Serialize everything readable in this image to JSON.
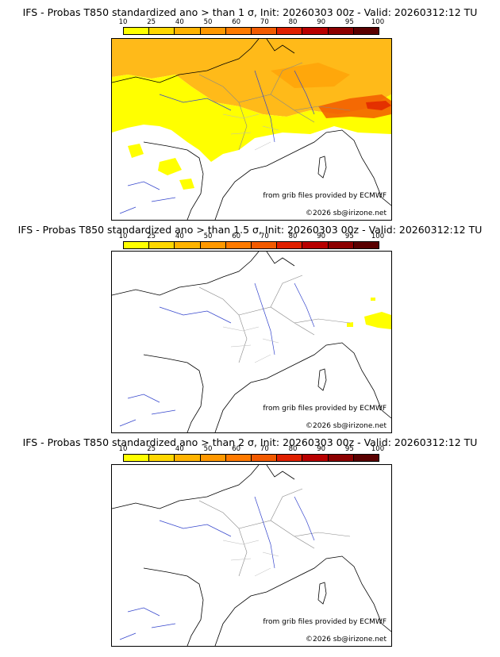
{
  "colorbar": {
    "ticks": [
      "10",
      "25",
      "40",
      "50",
      "60",
      "70",
      "80",
      "90",
      "95",
      "100"
    ],
    "colors": [
      "#ffff00",
      "#ffd700",
      "#ffb300",
      "#ff9800",
      "#ff7a00",
      "#f25a00",
      "#e02000",
      "#b80000",
      "#8c0000",
      "#5a0000"
    ]
  },
  "panels": [
    {
      "title": "IFS - Probas T850  standardized ano > than 1 σ, Init: 20260303 00z - Valid: 20260312:12 TU",
      "source": "from grib files provided by ECMWF",
      "copyright": "©2026 sb@irizone.net"
    },
    {
      "title": "IFS - Probas T850  standardized ano > than 1.5 σ, Init: 20260303 00z - Valid: 20260312:12 TU",
      "source": "from grib files provided by ECMWF",
      "copyright": "©2026 sb@irizone.net"
    },
    {
      "title": "IFS - Probas T850  standardized ano > than 2 σ, Init: 20260303 00z - Valid: 20260312:12 TU",
      "source": "from grib files provided by ECMWF",
      "copyright": "©2026 sb@irizone.net"
    }
  ]
}
